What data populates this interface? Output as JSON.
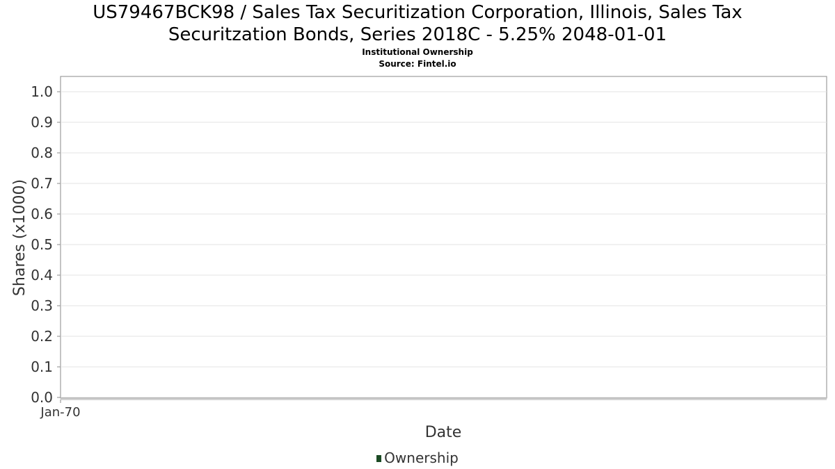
{
  "title_line1": "US79467BCK98 / Sales Tax Securitization Corporation, Illinois, Sales Tax",
  "title_line2": "Securitzation Bonds, Series 2018C - 5.25% 2048-01-01",
  "subtitle": "Institutional Ownership",
  "source": "Source: Fintel.io",
  "legend": {
    "label": "Ownership",
    "color": "#1b4a24"
  },
  "chart_data": {
    "type": "line",
    "title": "US79467BCK98 / Sales Tax Securitization Corporation, Illinois, Sales Tax Securitzation Bonds, Series 2018C - 5.25% 2048-01-01",
    "subtitle": "Institutional Ownership",
    "xlabel": "Date",
    "ylabel": "Shares (x1000)",
    "x_ticks": [
      "Jan-70"
    ],
    "y_ticks": [
      "0.0",
      "0.1",
      "0.2",
      "0.3",
      "0.4",
      "0.5",
      "0.6",
      "0.7",
      "0.8",
      "0.9",
      "1.0"
    ],
    "ylim": [
      0,
      1.0
    ],
    "grid": true,
    "legend_position": "bottom",
    "series": [
      {
        "name": "Ownership",
        "color": "#1b4a24",
        "x": [],
        "values": []
      }
    ]
  }
}
